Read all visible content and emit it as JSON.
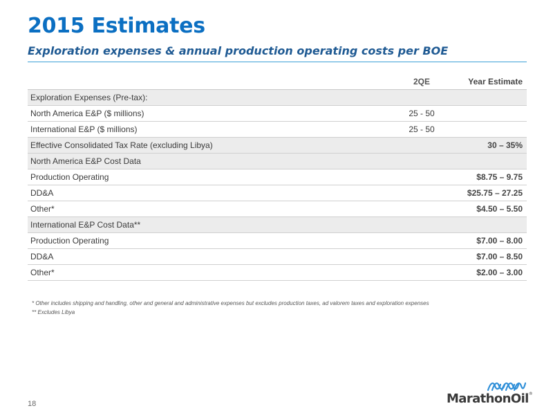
{
  "header": {
    "title": "2015 Estimates",
    "subtitle": "Exploration expenses & annual production operating costs per BOE"
  },
  "table": {
    "columns": [
      "",
      "2QE",
      "Year Estimate"
    ],
    "rows": [
      {
        "label": "Exploration Expenses (Pre-tax):",
        "q": "",
        "year": "",
        "shaded": true
      },
      {
        "label": "North America E&P ($ millions)",
        "q": "25 - 50",
        "year": "",
        "shaded": false
      },
      {
        "label": "International  E&P ($ millions)",
        "q": "25 - 50",
        "year": "",
        "shaded": false
      },
      {
        "label": "Effective Consolidated Tax Rate (excluding Libya)",
        "q": "",
        "year": "30 – 35%",
        "shaded": true
      },
      {
        "label": "North America E&P Cost Data",
        "q": "",
        "year": "",
        "shaded": true
      },
      {
        "label": "Production Operating",
        "q": "",
        "year": "$8.75 – 9.75",
        "shaded": false
      },
      {
        "label": "DD&A",
        "q": "",
        "year": "$25.75 – 27.25",
        "shaded": false
      },
      {
        "label": "Other*",
        "q": "",
        "year": "$4.50 – 5.50",
        "shaded": false
      },
      {
        "label": "International E&P Cost Data**",
        "q": "",
        "year": "",
        "shaded": true
      },
      {
        "label": "Production Operating",
        "q": "",
        "year": "$7.00 – 8.00",
        "shaded": false
      },
      {
        "label": "DD&A",
        "q": "",
        "year": "$7.00 – 8.50",
        "shaded": false
      },
      {
        "label": "Other*",
        "q": "",
        "year": "$2.00 – 3.00",
        "shaded": false
      }
    ]
  },
  "footnotes": [
    "* Other includes shipping and handling, other and general and administrative expenses but excludes production taxes, ad valorem taxes and exploration expenses",
    "** Excludes Libya"
  ],
  "page_number": "18",
  "logo": {
    "text": "MarathonOil",
    "trademark": "®",
    "icon": "marathon-wave-icon",
    "colors": {
      "mark": "#2f8fd8",
      "text": "#3a3a3a"
    }
  },
  "colors": {
    "title": "#0b6fc2",
    "subtitle": "#1f5a93",
    "divider": "#3aa0d6",
    "shaded_row": "#ececec"
  }
}
